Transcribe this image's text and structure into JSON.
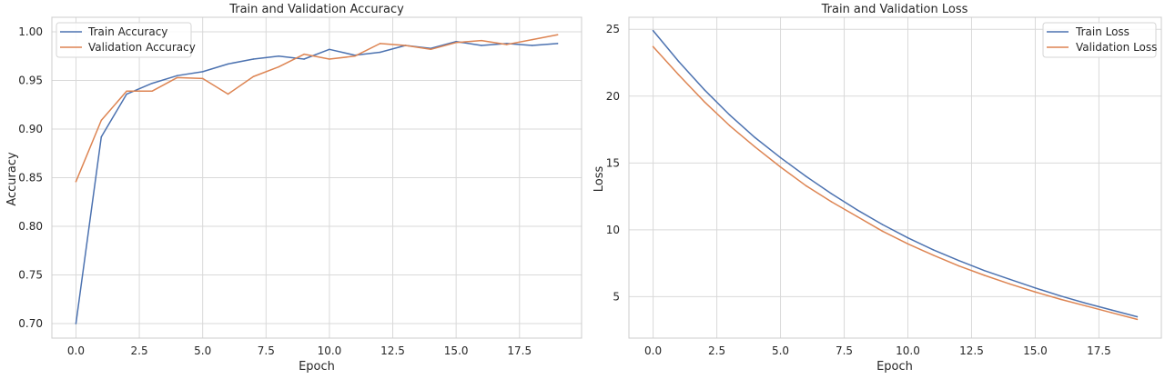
{
  "chart_data": [
    {
      "type": "line",
      "title": "Train and Validation Accuracy",
      "xlabel": "Epoch",
      "ylabel": "Accuracy",
      "xlim": [
        -0.95,
        19.95
      ],
      "ylim": [
        0.685,
        1.015
      ],
      "xticks": [
        0.0,
        2.5,
        5.0,
        7.5,
        10.0,
        12.5,
        15.0,
        17.5
      ],
      "xtick_labels": [
        "0.0",
        "2.5",
        "5.0",
        "7.5",
        "10.0",
        "12.5",
        "15.0",
        "17.5"
      ],
      "yticks": [
        0.7,
        0.75,
        0.8,
        0.85,
        0.9,
        0.95,
        1.0
      ],
      "ytick_labels": [
        "0.70",
        "0.75",
        "0.80",
        "0.85",
        "0.90",
        "0.95",
        "1.00"
      ],
      "grid": true,
      "legend_position": "top-left",
      "x": [
        0,
        1,
        2,
        3,
        4,
        5,
        6,
        7,
        8,
        9,
        10,
        11,
        12,
        13,
        14,
        15,
        16,
        17,
        18,
        19
      ],
      "series": [
        {
          "name": "Train Accuracy",
          "color": "#4c72b0",
          "values": [
            0.7,
            0.892,
            0.936,
            0.947,
            0.955,
            0.959,
            0.967,
            0.972,
            0.975,
            0.972,
            0.982,
            0.976,
            0.979,
            0.986,
            0.983,
            0.99,
            0.986,
            0.988,
            0.986,
            0.988
          ]
        },
        {
          "name": "Validation Accuracy",
          "color": "#dd8452",
          "values": [
            0.846,
            0.909,
            0.939,
            0.939,
            0.953,
            0.952,
            0.936,
            0.954,
            0.964,
            0.977,
            0.972,
            0.975,
            0.988,
            0.986,
            0.982,
            0.989,
            0.991,
            0.987,
            0.992,
            0.997
          ]
        }
      ]
    },
    {
      "type": "line",
      "title": "Train and Validation Loss",
      "xlabel": "Epoch",
      "ylabel": "Loss",
      "xlim": [
        -0.95,
        19.95
      ],
      "ylim": [
        1.9,
        25.9
      ],
      "xticks": [
        0.0,
        2.5,
        5.0,
        7.5,
        10.0,
        12.5,
        15.0,
        17.5
      ],
      "xtick_labels": [
        "0.0",
        "2.5",
        "5.0",
        "7.5",
        "10.0",
        "12.5",
        "15.0",
        "17.5"
      ],
      "yticks": [
        5,
        10,
        15,
        20,
        25
      ],
      "ytick_labels": [
        "5",
        "10",
        "15",
        "20",
        "25"
      ],
      "grid": true,
      "legend_position": "top-right",
      "x": [
        0,
        1,
        2,
        3,
        4,
        5,
        6,
        7,
        8,
        9,
        10,
        11,
        12,
        13,
        14,
        15,
        16,
        17,
        18,
        19
      ],
      "series": [
        {
          "name": "Train Loss",
          "color": "#4c72b0",
          "values": [
            24.9,
            22.6,
            20.5,
            18.6,
            16.9,
            15.4,
            14.0,
            12.7,
            11.5,
            10.4,
            9.4,
            8.5,
            7.7,
            6.95,
            6.3,
            5.65,
            5.05,
            4.5,
            4.0,
            3.5
          ]
        },
        {
          "name": "Validation Loss",
          "color": "#dd8452",
          "values": [
            23.7,
            21.6,
            19.6,
            17.8,
            16.2,
            14.7,
            13.3,
            12.1,
            11.0,
            9.9,
            8.95,
            8.1,
            7.3,
            6.6,
            5.95,
            5.35,
            4.8,
            4.3,
            3.8,
            3.3
          ]
        }
      ]
    }
  ]
}
